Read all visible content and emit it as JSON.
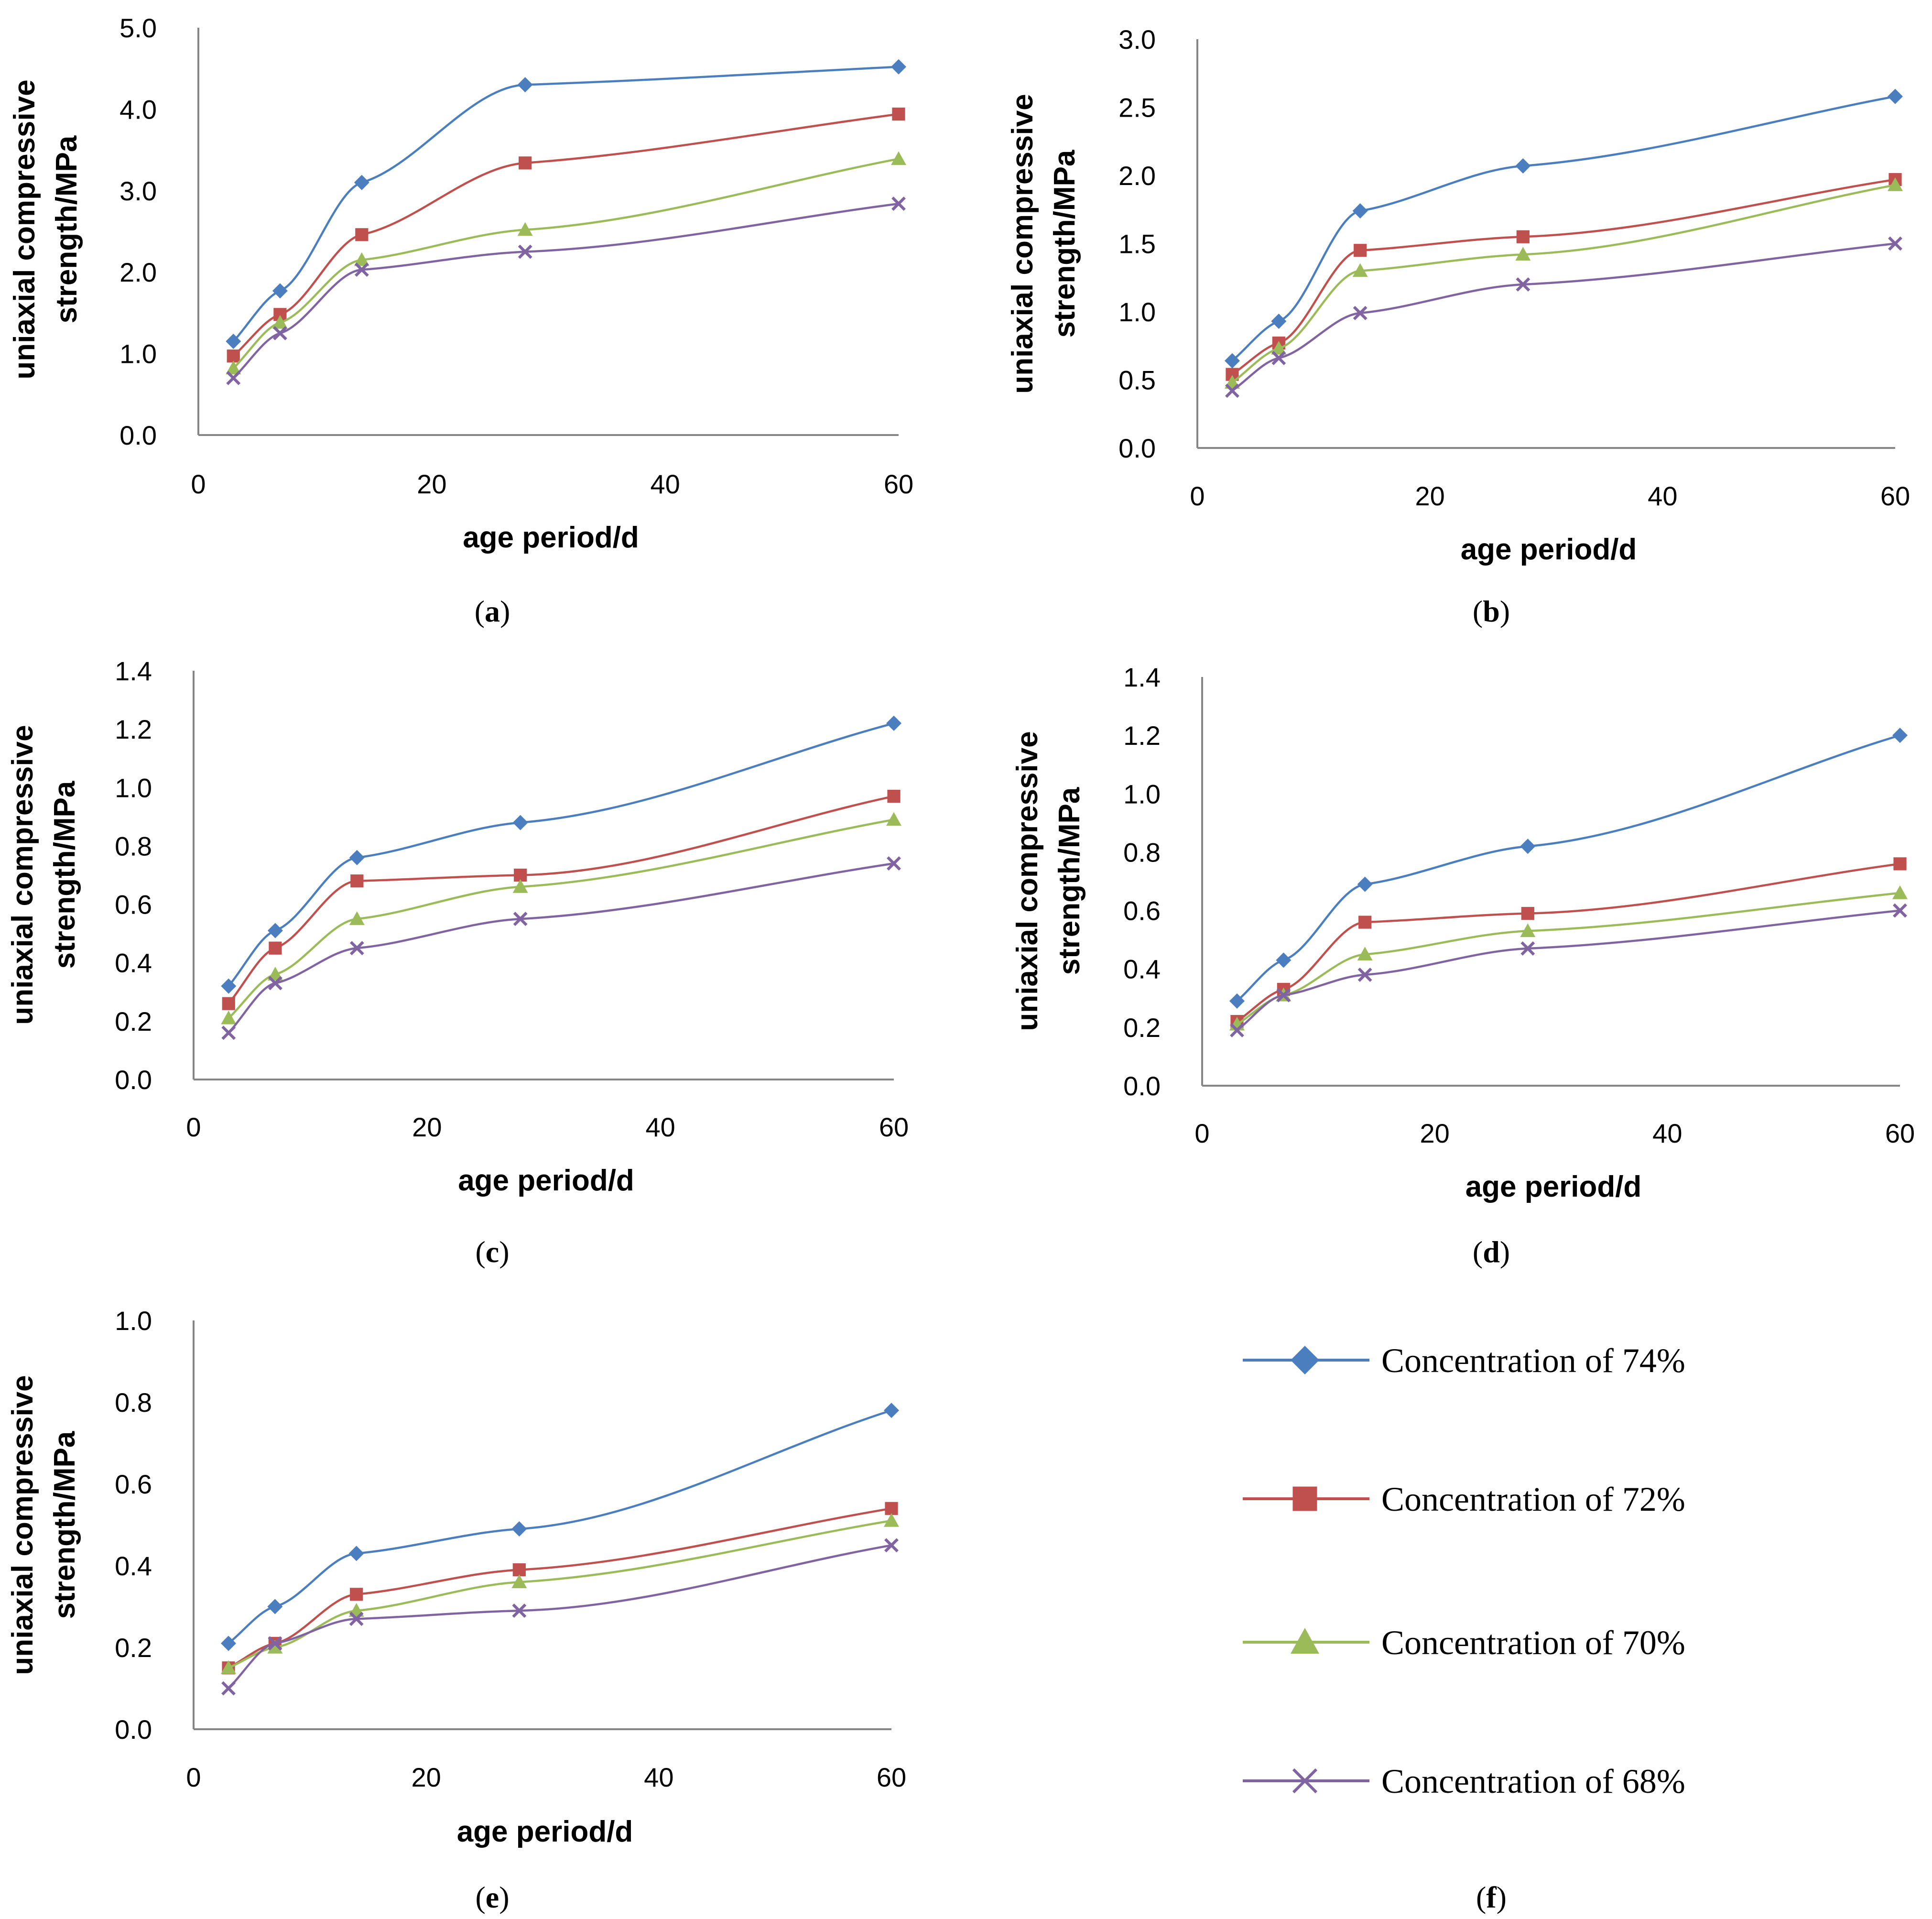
{
  "series_styles": [
    {
      "name": "Concentration of 74%",
      "color": "#4a7ebf",
      "marker": "diamond"
    },
    {
      "name": "Concentration of 72%",
      "color": "#c0504d",
      "marker": "square"
    },
    {
      "name": "Concentration of 70%",
      "color": "#9bbb59",
      "marker": "triangle"
    },
    {
      "name": "Concentration of 68%",
      "color": "#8064a2",
      "marker": "cross"
    }
  ],
  "legend": {
    "caption": "(f)",
    "caption_letter": "f",
    "items": [
      "Concentration of 74%",
      "Concentration of 72%",
      "Concentration of 70%",
      "Concentration of 68%"
    ]
  },
  "chart_data": [
    {
      "type": "line",
      "caption": "(a)",
      "caption_letter": "a",
      "xlabel": "age period/d",
      "ylabel_line1": "uniaxial compressive",
      "ylabel_line2": "strength/MPa",
      "x_ticks": [
        "0",
        "20",
        "40",
        "60"
      ],
      "y_ticks": [
        "0.0",
        "1.0",
        "2.0",
        "3.0",
        "4.0",
        "5.0"
      ],
      "xlim": [
        0,
        60
      ],
      "ylim": [
        0,
        5
      ],
      "x": [
        3,
        7,
        14,
        28,
        60
      ],
      "series": [
        {
          "name": "Concentration of 74%",
          "values": [
            1.15,
            1.77,
            3.1,
            4.3,
            4.52
          ]
        },
        {
          "name": "Concentration of 72%",
          "values": [
            0.97,
            1.48,
            2.46,
            3.34,
            3.94
          ]
        },
        {
          "name": "Concentration of 70%",
          "values": [
            0.82,
            1.38,
            2.15,
            2.52,
            3.39
          ]
        },
        {
          "name": "Concentration of 68%",
          "values": [
            0.7,
            1.25,
            2.03,
            2.25,
            2.84
          ]
        }
      ]
    },
    {
      "type": "line",
      "caption": "(b)",
      "caption_letter": "b",
      "xlabel": "age period/d",
      "ylabel_line1": "uniaxial compressive",
      "ylabel_line2": "strength/MPa",
      "x_ticks": [
        "0",
        "20",
        "40",
        "60"
      ],
      "y_ticks": [
        "0.0",
        "0.5",
        "1.0",
        "1.5",
        "2.0",
        "2.5",
        "3.0"
      ],
      "xlim": [
        0,
        60
      ],
      "ylim": [
        0,
        3
      ],
      "x": [
        3,
        7,
        14,
        28,
        60
      ],
      "series": [
        {
          "name": "Concentration of 74%",
          "values": [
            0.64,
            0.93,
            1.74,
            2.07,
            2.58
          ]
        },
        {
          "name": "Concentration of 72%",
          "values": [
            0.54,
            0.77,
            1.45,
            1.55,
            1.97
          ]
        },
        {
          "name": "Concentration of 70%",
          "values": [
            0.48,
            0.73,
            1.3,
            1.42,
            1.93
          ]
        },
        {
          "name": "Concentration of 68%",
          "values": [
            0.42,
            0.66,
            0.99,
            1.2,
            1.5
          ]
        }
      ]
    },
    {
      "type": "line",
      "caption": "(c)",
      "caption_letter": "c",
      "xlabel": "age period/d",
      "ylabel_line1": "uniaxial compressive",
      "ylabel_line2": "strength/MPa",
      "x_ticks": [
        "0",
        "20",
        "40",
        "60"
      ],
      "y_ticks": [
        "0.0",
        "0.2",
        "0.4",
        "0.6",
        "0.8",
        "1.0",
        "1.2",
        "1.4"
      ],
      "xlim": [
        0,
        60
      ],
      "ylim": [
        0,
        1.4
      ],
      "x": [
        3,
        7,
        14,
        28,
        60
      ],
      "series": [
        {
          "name": "Concentration of 74%",
          "values": [
            0.32,
            0.51,
            0.76,
            0.88,
            1.22
          ]
        },
        {
          "name": "Concentration of 72%",
          "values": [
            0.26,
            0.45,
            0.68,
            0.7,
            0.97
          ]
        },
        {
          "name": "Concentration of 70%",
          "values": [
            0.21,
            0.36,
            0.55,
            0.66,
            0.89
          ]
        },
        {
          "name": "Concentration of 68%",
          "values": [
            0.16,
            0.33,
            0.45,
            0.55,
            0.74
          ]
        }
      ]
    },
    {
      "type": "line",
      "caption": "(d)",
      "caption_letter": "d",
      "xlabel": "age period/d",
      "ylabel_line1": "uniaxial compressive",
      "ylabel_line2": "strength/MPa",
      "x_ticks": [
        "0",
        "20",
        "40",
        "60"
      ],
      "y_ticks": [
        "0.0",
        "0.2",
        "0.4",
        "0.6",
        "0.8",
        "1.0",
        "1.2",
        "1.4"
      ],
      "xlim": [
        0,
        60
      ],
      "ylim": [
        0,
        1.4
      ],
      "x": [
        3,
        7,
        14,
        28,
        60
      ],
      "series": [
        {
          "name": "Concentration of 74%",
          "values": [
            0.29,
            0.43,
            0.69,
            0.82,
            1.2
          ]
        },
        {
          "name": "Concentration of 72%",
          "values": [
            0.22,
            0.33,
            0.56,
            0.59,
            0.76
          ]
        },
        {
          "name": "Concentration of 70%",
          "values": [
            0.21,
            0.31,
            0.45,
            0.53,
            0.66
          ]
        },
        {
          "name": "Concentration of 68%",
          "values": [
            0.19,
            0.31,
            0.38,
            0.47,
            0.6
          ]
        }
      ]
    },
    {
      "type": "line",
      "caption": "(e)",
      "caption_letter": "e",
      "xlabel": "age period/d",
      "ylabel_line1": "uniaxial compressive",
      "ylabel_line2": "strength/MPa",
      "x_ticks": [
        "0",
        "20",
        "40",
        "60"
      ],
      "y_ticks": [
        "0.0",
        "0.2",
        "0.4",
        "0.6",
        "0.8",
        "1.0"
      ],
      "xlim": [
        0,
        60
      ],
      "ylim": [
        0,
        1
      ],
      "x": [
        3,
        7,
        14,
        28,
        60
      ],
      "series": [
        {
          "name": "Concentration of 74%",
          "values": [
            0.21,
            0.3,
            0.43,
            0.49,
            0.78
          ]
        },
        {
          "name": "Concentration of 72%",
          "values": [
            0.15,
            0.21,
            0.33,
            0.39,
            0.54
          ]
        },
        {
          "name": "Concentration of 70%",
          "values": [
            0.15,
            0.2,
            0.29,
            0.36,
            0.51
          ]
        },
        {
          "name": "Concentration of 68%",
          "values": [
            0.1,
            0.21,
            0.27,
            0.29,
            0.45
          ]
        }
      ]
    }
  ]
}
